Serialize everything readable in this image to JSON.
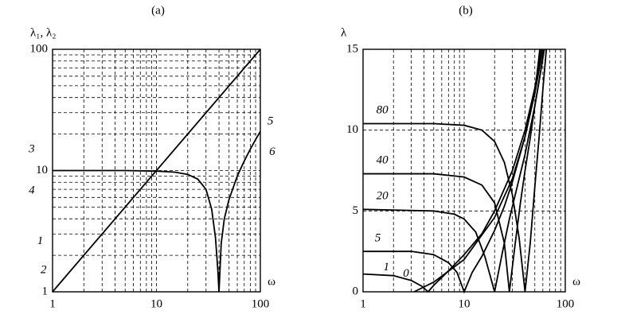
{
  "chart_data": [
    {
      "type": "line",
      "title": "(a)",
      "xlabel": "ω",
      "ylabel": "λ₁, λ₂",
      "xscale": "log",
      "yscale": "log",
      "xlim": [
        1,
        100
      ],
      "ylim": [
        1,
        100
      ],
      "xticks": [
        1,
        10,
        100
      ],
      "yticks": [
        1,
        10,
        100
      ],
      "xminor": [
        2,
        3,
        4,
        5,
        6,
        7,
        8,
        9,
        20,
        30,
        40,
        50,
        60,
        70,
        80,
        90
      ],
      "yminor": [
        2,
        3,
        4,
        5,
        6,
        7,
        8,
        9,
        20,
        30,
        40,
        50,
        60,
        70,
        80,
        90
      ],
      "series": [
        {
          "color": "#000000",
          "x": [
            1,
            100
          ],
          "values": [
            1,
            100
          ]
        },
        {
          "color": "#000000",
          "x": [
            1,
            2,
            5,
            10,
            15,
            20,
            25,
            30,
            34,
            37,
            39,
            40
          ],
          "values": [
            10,
            10,
            10,
            9.9,
            9.7,
            9.3,
            8.5,
            7,
            4.8,
            2.8,
            1.5,
            1
          ]
        },
        {
          "color": "#000000",
          "x": [
            40,
            42,
            45,
            50,
            60,
            70,
            80,
            90,
            100
          ],
          "values": [
            1,
            2.5,
            4,
            5.8,
            9,
            12,
            15,
            18,
            21
          ]
        }
      ],
      "annotations": [
        {
          "text": "1",
          "x": 0.76,
          "y": 2.6
        },
        {
          "text": "2",
          "x": 0.82,
          "y": 1.5
        },
        {
          "text": "3",
          "x": 0.63,
          "y": 14.9
        },
        {
          "text": "4",
          "x": 0.63,
          "y": 6.8
        },
        {
          "text": "5",
          "x": 125,
          "y": 25.3
        },
        {
          "text": "6",
          "x": 130,
          "y": 14.1
        }
      ]
    },
    {
      "type": "line",
      "title": "(b)",
      "xlabel": "ω",
      "ylabel": "λ",
      "xscale": "log",
      "yscale": "linear",
      "xlim": [
        1,
        100
      ],
      "ylim": [
        0,
        15
      ],
      "xticks": [
        1,
        10,
        100
      ],
      "yticks": [
        0,
        5,
        10,
        15
      ],
      "xminor": [
        2,
        3,
        4,
        5,
        6,
        7,
        8,
        9,
        20,
        30,
        40,
        50,
        60,
        70,
        80,
        90
      ],
      "series": [
        {
          "color": "#000000",
          "x": [
            1,
            5,
            10,
            15,
            20,
            25,
            30,
            35,
            40,
            45,
            50,
            55,
            60,
            65
          ],
          "values": [
            10.4,
            10.4,
            10.3,
            10,
            9.3,
            8,
            6,
            3.3,
            0,
            3,
            6.5,
            9.5,
            12.5,
            15
          ]
        },
        {
          "color": "#000000",
          "x": [
            1,
            5,
            10,
            15,
            20,
            25,
            28,
            32,
            36,
            40,
            45,
            50,
            55,
            62
          ],
          "values": [
            7.3,
            7.3,
            7.1,
            6.6,
            5.5,
            3,
            0,
            3,
            5.5,
            7.5,
            9.5,
            11.5,
            13,
            15
          ]
        },
        {
          "color": "#000000",
          "x": [
            1,
            5,
            8,
            10,
            13,
            16,
            20,
            24,
            28,
            32,
            40,
            50,
            62
          ],
          "values": [
            5.1,
            5,
            4.8,
            4.5,
            3.7,
            2.2,
            0,
            2.5,
            4.5,
            6,
            8.5,
            11.5,
            15
          ]
        },
        {
          "color": "#000000",
          "x": [
            1,
            3,
            5,
            7,
            8.5,
            10,
            12,
            15,
            20,
            25,
            30,
            40,
            50,
            60
          ],
          "values": [
            2.5,
            2.5,
            2.3,
            1.8,
            1.2,
            0,
            1.2,
            2.2,
            3.8,
            5.3,
            6.8,
            9.6,
            12.3,
            15
          ]
        },
        {
          "color": "#000000",
          "x": [
            1,
            2,
            3,
            3.8,
            4.4,
            5,
            7,
            10,
            15,
            20,
            30,
            40,
            50,
            58
          ],
          "values": [
            1.1,
            1,
            0.7,
            0.35,
            0,
            0.4,
            1.3,
            2.3,
            3.6,
            5,
            7.5,
            10,
            12.6,
            15
          ]
        },
        {
          "color": "#000000",
          "x": [
            3.2,
            5,
            10,
            20,
            30,
            40,
            50,
            56
          ],
          "values": [
            0,
            0.6,
            2,
            4.6,
            7,
            9.6,
            12.3,
            15
          ]
        }
      ],
      "annotations": [
        {
          "text": "80",
          "x": 1.55,
          "y": 11.2
        },
        {
          "text": "40",
          "x": 1.55,
          "y": 8.1
        },
        {
          "text": "20",
          "x": 1.55,
          "y": 5.9
        },
        {
          "text": "5",
          "x": 1.4,
          "y": 3.3
        },
        {
          "text": "1",
          "x": 1.7,
          "y": 1.5
        },
        {
          "text": "0",
          "x": 2.66,
          "y": 1.1
        }
      ]
    }
  ]
}
